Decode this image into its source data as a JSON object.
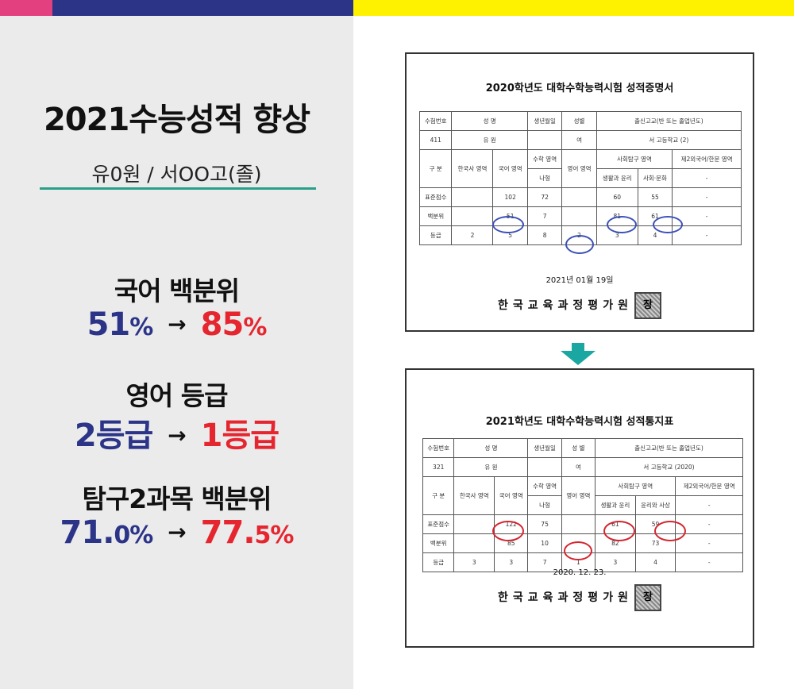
{
  "colors": {
    "pink": "#e3407f",
    "navy": "#2b3487",
    "yellow": "#fff200",
    "teal": "#2aa08a",
    "red": "#e6262f"
  },
  "left": {
    "title": "2021수능성적 향상",
    "subtitle": "유0원 / 서OO고(졸)",
    "stats": [
      {
        "label": "국어 백분위",
        "before": "51",
        "before_unit": "%",
        "after": "85",
        "after_unit": "%"
      },
      {
        "label": "영어 등급",
        "before": "2등급",
        "after": "1등급"
      },
      {
        "label": "탐구2과목 백분위",
        "before": "71.",
        "before_unit": "0%",
        "after": "77.",
        "after_unit": "5%"
      }
    ],
    "arrow": "→"
  },
  "doc1": {
    "title": "2020학년도 대학수학능력시험 성적증명서",
    "head": [
      "수험번호",
      "성 명",
      "생년월일",
      "성별",
      "출신고교(반 또는 졸업년도)"
    ],
    "info": [
      "411",
      "유 원",
      "",
      "여",
      "서 고등학교 (2)"
    ],
    "cols": [
      "구 분",
      "한국사 영역",
      "국어 영역",
      "수학 영역",
      "영어 영역",
      "사회탐구 영역",
      "제2외국어/한문 영역"
    ],
    "math_type": "나형",
    "sub1": "생활과 윤리",
    "sub2": "사회·문화",
    "rows": [
      {
        "label": "표준점수",
        "korean": "102",
        "math": "72",
        "s1": "60",
        "s2": "55",
        "fl": "-"
      },
      {
        "label": "백분위",
        "korean": "51",
        "math": "7",
        "s1": "81",
        "s2": "61",
        "fl": "-"
      },
      {
        "label": "등급",
        "history": "2",
        "korean": "5",
        "math": "8",
        "english": "2",
        "s1": "3",
        "s2": "4",
        "fl": "-"
      }
    ],
    "date": "2021년 01월 19일",
    "issuer": "한국교육과정평가원",
    "stamp": "장"
  },
  "doc2": {
    "title": "2021학년도 대학수학능력시험 성적통지표",
    "head": [
      "수험번호",
      "성 명",
      "생년월일",
      "성 별",
      "출신고교(반 또는 졸업년도)"
    ],
    "info": [
      "321",
      "유 원",
      "",
      "여",
      "서 고등학교 (2020)"
    ],
    "cols": [
      "구 분",
      "한국사 영역",
      "국어 영역",
      "수학 영역",
      "영어 영역",
      "사회탐구 영역",
      "제2외국어/한문 영역"
    ],
    "math_type": "나형",
    "sub1": "생활과 윤리",
    "sub2": "윤리와 사상",
    "rows": [
      {
        "label": "표준점수",
        "korean": "122",
        "math": "75",
        "s1": "61",
        "s2": "59",
        "fl": "-"
      },
      {
        "label": "백분위",
        "korean": "85",
        "math": "10",
        "s1": "82",
        "s2": "73",
        "fl": "-"
      },
      {
        "label": "등급",
        "history": "3",
        "korean": "3",
        "math": "7",
        "english": "1",
        "s1": "3",
        "s2": "4",
        "fl": "-"
      }
    ],
    "date": "2020. 12. 23.",
    "issuer": "한국교육과정평가원",
    "stamp": "장"
  }
}
